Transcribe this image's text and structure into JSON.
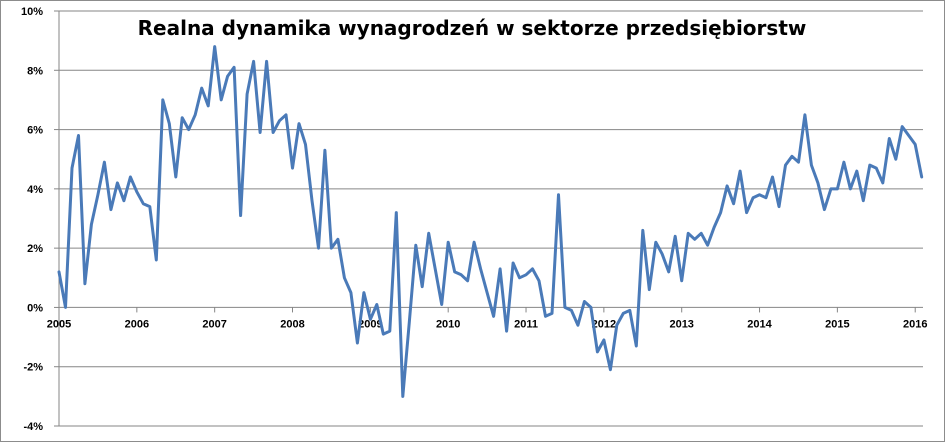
{
  "chart_data": {
    "type": "line",
    "title": "Realna dynamika wynagrodzeń w sektorze przedsiębiorstw",
    "xlabel": "",
    "ylabel": "",
    "x_tick_labels": [
      "2005",
      "2006",
      "2007",
      "2008",
      "2009",
      "2010",
      "2011",
      "2012",
      "2013",
      "2014",
      "2015",
      "2016"
    ],
    "y_tick_labels": [
      "10%",
      "8%",
      "6%",
      "4%",
      "2%",
      "0%",
      "-2%",
      "-4%"
    ],
    "y_ticks": [
      10,
      8,
      6,
      4,
      2,
      0,
      -2,
      -4
    ],
    "ylim": [
      -4,
      10
    ],
    "xlim": [
      2005,
      2016.1
    ],
    "grid": true,
    "legend": "none",
    "line_color": "#4a7ab8",
    "series": [
      {
        "values": [
          1.2,
          0.0,
          4.7,
          5.8,
          0.8,
          2.8,
          3.8,
          4.9,
          3.3,
          4.2,
          3.6,
          4.4,
          3.9,
          3.5,
          3.4,
          1.6,
          7.0,
          6.2,
          4.4,
          6.4,
          6.0,
          6.5,
          7.4,
          6.8,
          8.8,
          7.0,
          7.8,
          8.1,
          3.1,
          7.2,
          8.3,
          5.9,
          8.3,
          5.9,
          6.3,
          6.5,
          4.7,
          6.2,
          5.5,
          3.6,
          2.0,
          5.3,
          2.0,
          2.3,
          1.0,
          0.5,
          -1.2,
          0.5,
          -0.4,
          0.1,
          -0.9,
          -0.8,
          3.2,
          -3.0,
          -0.5,
          2.1,
          0.7,
          2.5,
          1.3,
          0.1,
          2.2,
          1.2,
          1.1,
          0.9,
          2.2,
          1.3,
          0.5,
          -0.3,
          1.3,
          -0.8,
          1.5,
          1.0,
          1.1,
          1.3,
          0.9,
          -0.3,
          -0.2,
          3.8,
          0.0,
          -0.1,
          -0.6,
          0.2,
          0.0,
          -1.5,
          -1.1,
          -2.1,
          -0.6,
          -0.2,
          -0.1,
          -1.3,
          2.6,
          0.6,
          2.2,
          1.8,
          1.2,
          2.4,
          0.9,
          2.5,
          2.3,
          2.5,
          2.1,
          2.7,
          3.2,
          4.1,
          3.5,
          4.6,
          3.2,
          3.7,
          3.8,
          3.7,
          4.4,
          3.4,
          4.8,
          5.1,
          4.9,
          6.5,
          4.8,
          4.2,
          3.3,
          4.0,
          4.0,
          4.9,
          4.0,
          4.6,
          3.6,
          4.8,
          4.7,
          4.2,
          5.7,
          5.0,
          6.1,
          5.8,
          5.5,
          4.4
        ]
      }
    ]
  }
}
